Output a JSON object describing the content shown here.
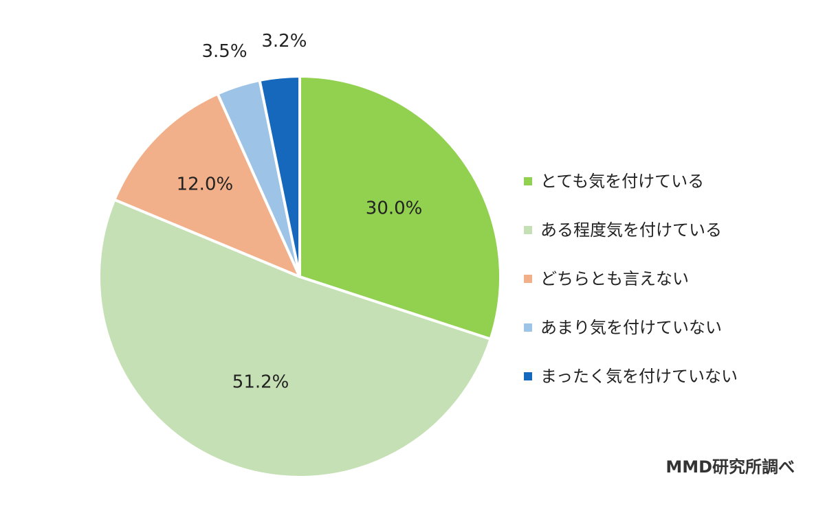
{
  "chart_data": {
    "type": "pie",
    "start_angle": "12 o'clock",
    "direction": "clockwise",
    "legend_position": "right",
    "slices": [
      {
        "label": "とても気を付けている",
        "value": 30.0,
        "value_label": "30.0%",
        "color": "#92d050"
      },
      {
        "label": "ある程度気を付けている",
        "value": 51.2,
        "value_label": "51.2%",
        "color": "#c5e0b4"
      },
      {
        "label": "どちらとも言えない",
        "value": 12.0,
        "value_label": "12.0%",
        "color": "#f2b08a"
      },
      {
        "label": "あまり気を付けていない",
        "value": 3.5,
        "value_label": "3.5%",
        "color": "#9dc3e6"
      },
      {
        "label": "まったく気を付けていない",
        "value": 3.2,
        "value_label": "3.2%",
        "color": "#1668bd"
      }
    ],
    "source": "MMD研究所調べ"
  }
}
